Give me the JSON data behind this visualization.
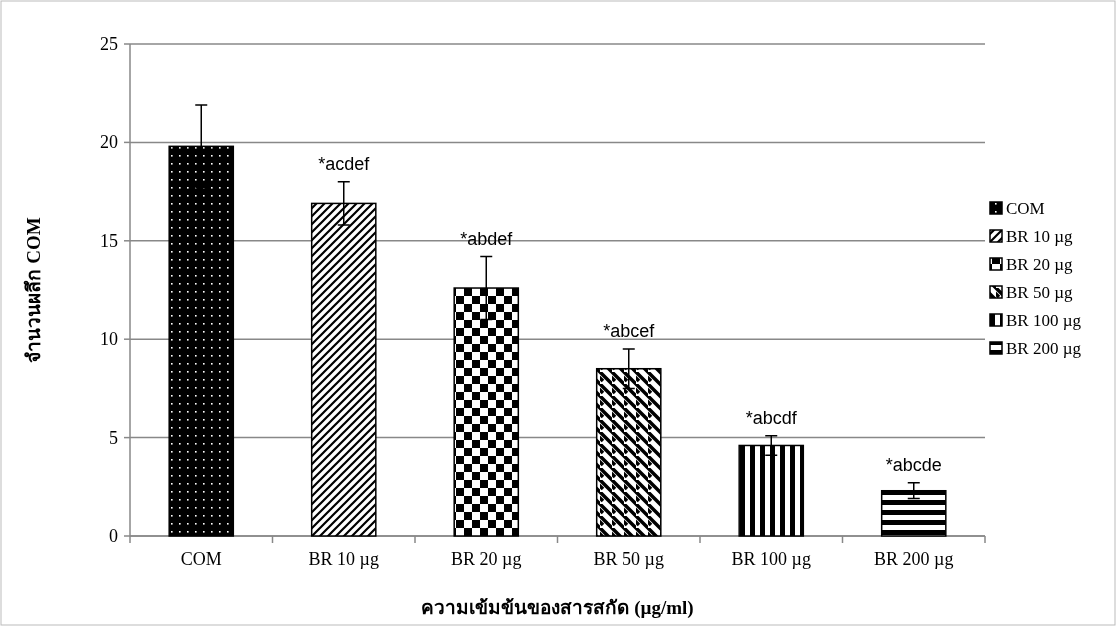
{
  "chart_data": {
    "type": "bar",
    "xlabel": "ความเข้มข้นของสารสกัด (µg/ml)",
    "ylabel": "จำนวนผลึก COM",
    "categories": [
      "COM",
      "BR 10 µg",
      "BR 20 µg",
      "BR 50 µg",
      "BR 100 µg",
      "BR 200 µg"
    ],
    "series": [
      {
        "name": "COM",
        "color": "#000000",
        "values": [
          19.8,
          null,
          null,
          null,
          null,
          null
        ],
        "errors": [
          2.1,
          null,
          null,
          null,
          null,
          null
        ]
      },
      {
        "name": "BR 10 µg",
        "color": "#000000",
        "values": [
          null,
          16.9,
          null,
          null,
          null,
          null
        ],
        "errors": [
          null,
          1.1,
          null,
          null,
          null,
          null
        ],
        "value_labels": [
          null,
          "*acdef",
          null,
          null,
          null,
          null
        ]
      },
      {
        "name": "BR 20 µg",
        "color": "#000000",
        "values": [
          null,
          null,
          12.6,
          null,
          null,
          null
        ],
        "errors": [
          null,
          null,
          1.6,
          null,
          null,
          null
        ],
        "value_labels": [
          null,
          null,
          "*abdef",
          null,
          null,
          null
        ]
      },
      {
        "name": "BR 50 µg",
        "color": "#000000",
        "values": [
          null,
          null,
          null,
          8.5,
          null,
          null
        ],
        "errors": [
          null,
          null,
          null,
          1.0,
          null,
          null
        ],
        "value_labels": [
          null,
          null,
          null,
          "*abcef",
          null,
          null
        ]
      },
      {
        "name": "BR 100 µg",
        "color": "#000000",
        "values": [
          null,
          null,
          null,
          null,
          4.6,
          null
        ],
        "errors": [
          null,
          null,
          null,
          null,
          0.5,
          null
        ],
        "value_labels": [
          null,
          null,
          null,
          null,
          "*abcdf",
          null
        ]
      },
      {
        "name": "BR 200 µg",
        "color": "#000000",
        "values": [
          null,
          null,
          null,
          null,
          null,
          2.3
        ],
        "errors": [
          null,
          null,
          null,
          null,
          null,
          0.4
        ],
        "value_labels": [
          null,
          null,
          null,
          null,
          null,
          "*abcde"
        ]
      }
    ],
    "ylim": [
      0,
      25
    ],
    "yticks": [
      0,
      5,
      10,
      15,
      20,
      25
    ],
    "grid": "y",
    "legend": "right"
  }
}
